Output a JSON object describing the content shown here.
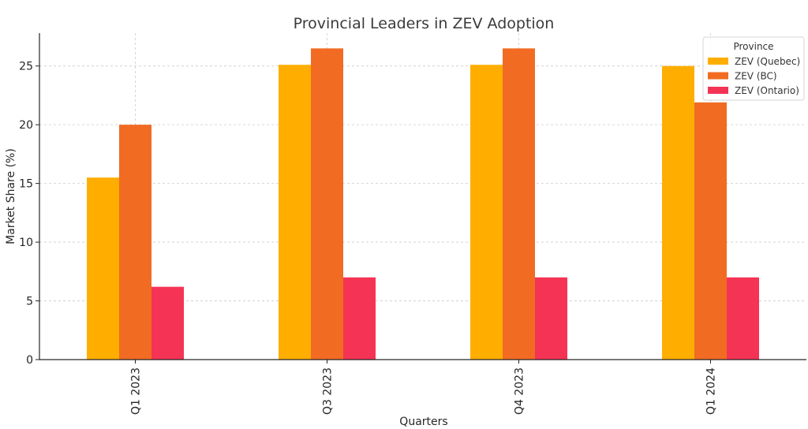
{
  "chart_data": {
    "type": "bar",
    "title": "Provincial Leaders in ZEV Adoption",
    "xlabel": "Quarters",
    "ylabel": "Market Share (%)",
    "categories": [
      "Q1 2023",
      "Q3 2023",
      "Q4 2023",
      "Q1 2024"
    ],
    "series": [
      {
        "name": "ZEV (Quebec)",
        "color": "#FFAE00",
        "values": [
          15.5,
          25.1,
          25.1,
          25.0
        ]
      },
      {
        "name": "ZEV (BC)",
        "color": "#F26B22",
        "values": [
          20.0,
          26.5,
          26.5,
          21.9
        ]
      },
      {
        "name": "ZEV (Ontario)",
        "color": "#F53354",
        "values": [
          6.2,
          7.0,
          7.0,
          7.0
        ]
      }
    ],
    "ylim": [
      0,
      27.8
    ],
    "yticks": [
      0,
      5,
      10,
      15,
      20,
      25
    ],
    "grid": true,
    "legend": {
      "title": "Province",
      "placement": "top-right"
    }
  }
}
